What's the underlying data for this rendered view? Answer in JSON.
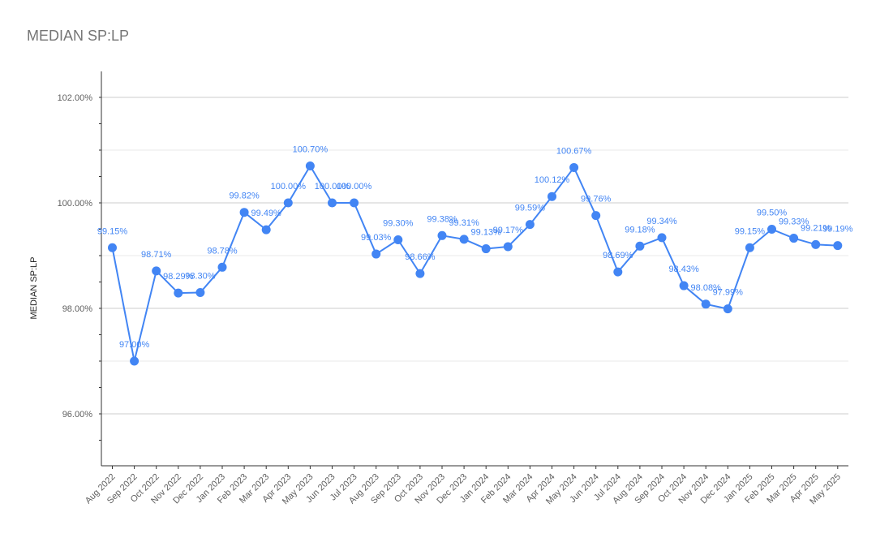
{
  "chart_data": {
    "type": "line",
    "title": "MEDIAN SP:LP",
    "xlabel": "",
    "ylabel": "MEDIAN SP:LP",
    "ylim": [
      95.0,
      102.5
    ],
    "y_ticks": [
      96,
      98,
      100,
      102
    ],
    "y_tick_labels": [
      "96.00%",
      "98.00%",
      "100.00%",
      "102.00%"
    ],
    "grid": true,
    "legend": "none",
    "categories": [
      "Aug 2022",
      "Sep 2022",
      "Oct 2022",
      "Nov 2022",
      "Dec 2022",
      "Jan 2023",
      "Feb 2023",
      "Mar 2023",
      "Apr 2023",
      "May 2023",
      "Jun 2023",
      "Jul 2023",
      "Aug 2023",
      "Sep 2023",
      "Oct 2023",
      "Nov 2023",
      "Dec 2023",
      "Jan 2024",
      "Feb 2024",
      "Mar 2024",
      "Apr 2024",
      "May 2024",
      "Jun 2024",
      "Jul 2024",
      "Aug 2024",
      "Sep 2024",
      "Oct 2024",
      "Nov 2024",
      "Dec 2024",
      "Jan 2025",
      "Feb 2025",
      "Mar 2025",
      "Apr 2025",
      "May 2025"
    ],
    "series": [
      {
        "color": "#4285f4",
        "values": [
          99.15,
          97.0,
          98.71,
          98.29,
          98.3,
          98.78,
          99.82,
          99.49,
          100.0,
          100.7,
          100.0,
          100.0,
          99.03,
          99.3,
          98.66,
          99.38,
          99.31,
          99.13,
          99.17,
          99.59,
          100.12,
          100.67,
          99.76,
          98.69,
          99.18,
          99.34,
          98.43,
          98.08,
          97.99,
          99.15,
          99.5,
          99.33,
          99.21,
          99.19
        ],
        "data_labels": [
          "99.15%",
          "97.00%",
          "98.71%",
          "98.29%",
          "98.30%",
          "98.78%",
          "99.82%",
          "99.49%",
          "100.00%",
          "100.70%",
          "100.00%",
          "100.00%",
          "99.03%",
          "99.30%",
          "98.66%",
          "99.38%",
          "99.31%",
          "99.13%",
          "99.17%",
          "99.59%",
          "100.12%",
          "100.67%",
          "99.76%",
          "98.69%",
          "99.18%",
          "99.34%",
          "98.43%",
          "98.08%",
          "97.99%",
          "99.15%",
          "99.50%",
          "99.33%",
          "99.21%",
          "99.19%"
        ]
      }
    ]
  }
}
